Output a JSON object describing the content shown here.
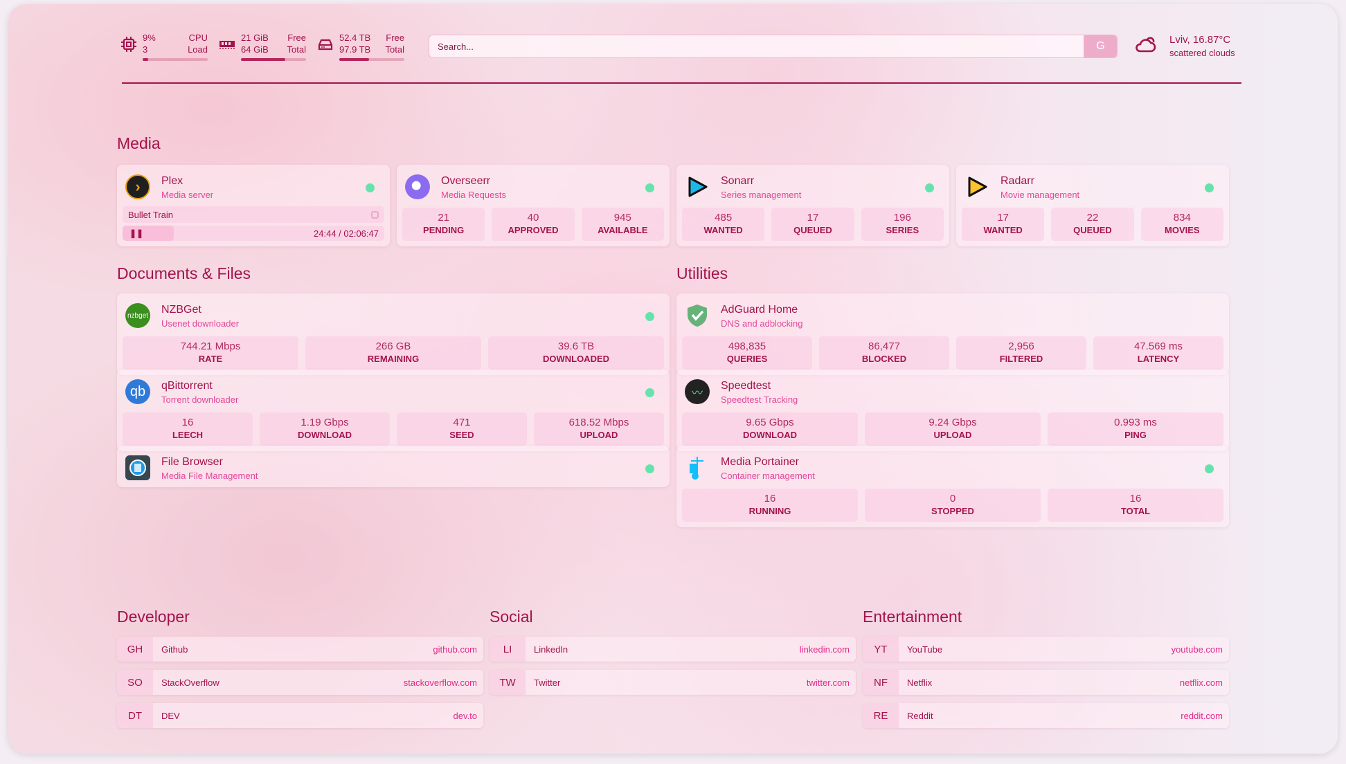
{
  "header": {
    "cpu": {
      "icon": "cpu-icon",
      "value1": "9%",
      "value2": "3",
      "label1": "CPU",
      "label2": "Load",
      "fill_percent": 9
    },
    "memory": {
      "icon": "memory-icon",
      "value1": "21 GiB",
      "value2": "64 GiB",
      "label1": "Free",
      "label2": "Total",
      "fill_percent": 68
    },
    "disk": {
      "icon": "hard-drive-icon",
      "value1": "52.4 TB",
      "value2": "97.9 TB",
      "label1": "Free",
      "label2": "Total",
      "fill_percent": 46
    },
    "search": {
      "placeholder": "Search...",
      "button_label": "G"
    },
    "weather": {
      "icon": "cloud-icon",
      "location_temp": "Lviv, 16.87°C",
      "description": "scattered clouds"
    }
  },
  "colors": {
    "accent": "#a3134c",
    "subtitle": "#e2479a",
    "status_online": "#66e3ac",
    "url": "#e22a8a"
  },
  "sections": {
    "media": "Media",
    "documents": "Documents & Files",
    "utilities": "Utilities",
    "developer": "Developer",
    "social": "Social",
    "entertainment": "Entertainment"
  },
  "plex": {
    "title": "Plex",
    "subtitle": "Media server",
    "icon": "plex-icon",
    "status": "online",
    "now_playing": "Bullet Train",
    "time": "24:44 / 02:06:47",
    "progress_percent": 19.5
  },
  "media": [
    {
      "title": "Overseerr",
      "subtitle": "Media Requests",
      "icon": "overseerr-icon",
      "stats": [
        {
          "value": "21",
          "label": "PENDING"
        },
        {
          "value": "40",
          "label": "APPROVED"
        },
        {
          "value": "945",
          "label": "AVAILABLE"
        }
      ]
    },
    {
      "title": "Sonarr",
      "subtitle": "Series management",
      "icon": "sonarr-icon",
      "stats": [
        {
          "value": "485",
          "label": "WANTED"
        },
        {
          "value": "17",
          "label": "QUEUED"
        },
        {
          "value": "196",
          "label": "SERIES"
        }
      ]
    },
    {
      "title": "Radarr",
      "subtitle": "Movie management",
      "icon": "radarr-icon",
      "stats": [
        {
          "value": "17",
          "label": "WANTED"
        },
        {
          "value": "22",
          "label": "QUEUED"
        },
        {
          "value": "834",
          "label": "MOVIES"
        }
      ]
    }
  ],
  "documents": [
    {
      "title": "NZBGet",
      "subtitle": "Usenet downloader",
      "icon": "nzbget-icon",
      "status": true,
      "stats": [
        {
          "value": "744.21 Mbps",
          "label": "RATE"
        },
        {
          "value": "266 GB",
          "label": "REMAINING"
        },
        {
          "value": "39.6 TB",
          "label": "DOWNLOADED"
        }
      ]
    },
    {
      "title": "qBittorrent",
      "subtitle": "Torrent downloader",
      "icon": "qbittorrent-icon",
      "status": true,
      "stats": [
        {
          "value": "16",
          "label": "LEECH"
        },
        {
          "value": "1.19 Gbps",
          "label": "DOWNLOAD"
        },
        {
          "value": "471",
          "label": "SEED"
        },
        {
          "value": "618.52 Mbps",
          "label": "UPLOAD"
        }
      ]
    },
    {
      "title": "File Browser",
      "subtitle": "Media File Management",
      "icon": "file-browser-icon",
      "status": true,
      "stats": []
    }
  ],
  "utilities": [
    {
      "title": "AdGuard Home",
      "subtitle": "DNS and adblocking",
      "icon": "adguard-shield-icon",
      "status": false,
      "stats": [
        {
          "value": "498,835",
          "label": "QUERIES"
        },
        {
          "value": "86,477",
          "label": "BLOCKED"
        },
        {
          "value": "2,956",
          "label": "FILTERED"
        },
        {
          "value": "47.569 ms",
          "label": "LATENCY"
        }
      ]
    },
    {
      "title": "Speedtest",
      "subtitle": "Speedtest Tracking",
      "icon": "speedtest-icon",
      "status": false,
      "stats": [
        {
          "value": "9.65 Gbps",
          "label": "DOWNLOAD"
        },
        {
          "value": "9.24 Gbps",
          "label": "UPLOAD"
        },
        {
          "value": "0.993 ms",
          "label": "PING"
        }
      ]
    },
    {
      "title": "Media Portainer",
      "subtitle": "Container management",
      "icon": "portainer-icon",
      "status": true,
      "stats": [
        {
          "value": "16",
          "label": "RUNNING"
        },
        {
          "value": "0",
          "label": "STOPPED"
        },
        {
          "value": "16",
          "label": "TOTAL"
        }
      ]
    }
  ],
  "developer": [
    {
      "abbr": "GH",
      "name": "Github",
      "url": "github.com"
    },
    {
      "abbr": "SO",
      "name": "StackOverflow",
      "url": "stackoverflow.com"
    },
    {
      "abbr": "DT",
      "name": "DEV",
      "url": "dev.to"
    }
  ],
  "social": [
    {
      "abbr": "LI",
      "name": "LinkedIn",
      "url": "linkedin.com"
    },
    {
      "abbr": "TW",
      "name": "Twitter",
      "url": "twitter.com"
    }
  ],
  "entertainment": [
    {
      "abbr": "YT",
      "name": "YouTube",
      "url": "youtube.com"
    },
    {
      "abbr": "NF",
      "name": "Netflix",
      "url": "netflix.com"
    },
    {
      "abbr": "RE",
      "name": "Reddit",
      "url": "reddit.com"
    }
  ]
}
